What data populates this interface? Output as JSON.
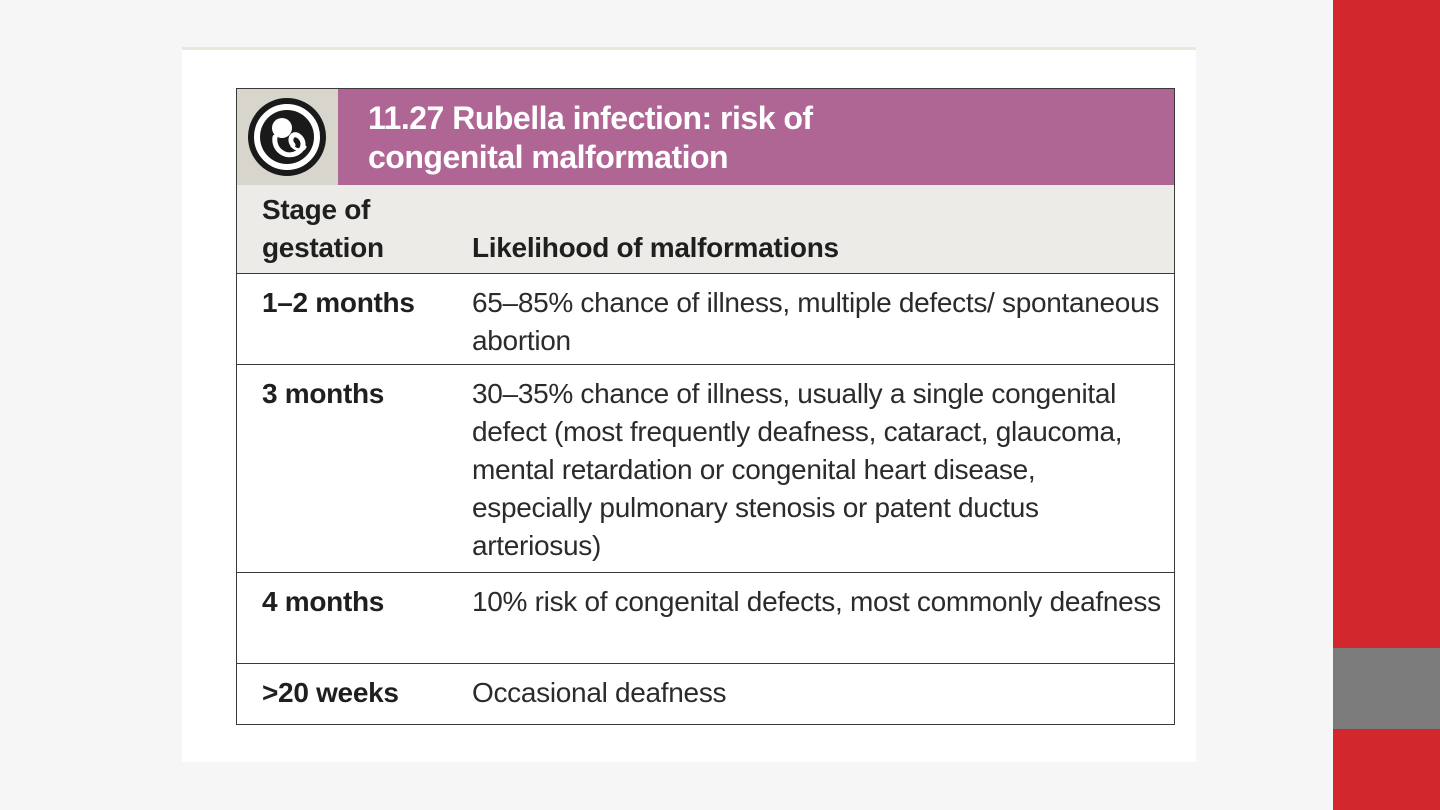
{
  "colors": {
    "title_band": "#b06694",
    "icon_band": "#d8d5cc",
    "column_header_band": "#ecebe7",
    "side_strip_red": "#d2282d",
    "side_strip_gray": "#7b7b7b"
  },
  "box": {
    "icon": "fetus-icon",
    "title": "11.27  Rubella infection: risk of congenital malformation"
  },
  "table": {
    "headers": [
      "Stage of gestation",
      "Likelihood of malformations"
    ],
    "rows": [
      {
        "stage": "1–2 months",
        "likelihood": "65–85% chance of illness, multiple defects/ spontaneous abortion"
      },
      {
        "stage": "3 months",
        "likelihood": "30–35% chance of illness, usually a single congenital defect (most frequently deafness, cataract, glaucoma, mental retardation or congenital heart disease, especially pulmonary stenosis or patent ductus arteriosus)"
      },
      {
        "stage": "4 months",
        "likelihood": "10% risk of congenital defects, most commonly deafness"
      },
      {
        "stage": ">20 weeks",
        "likelihood": "Occasional deafness"
      }
    ]
  }
}
